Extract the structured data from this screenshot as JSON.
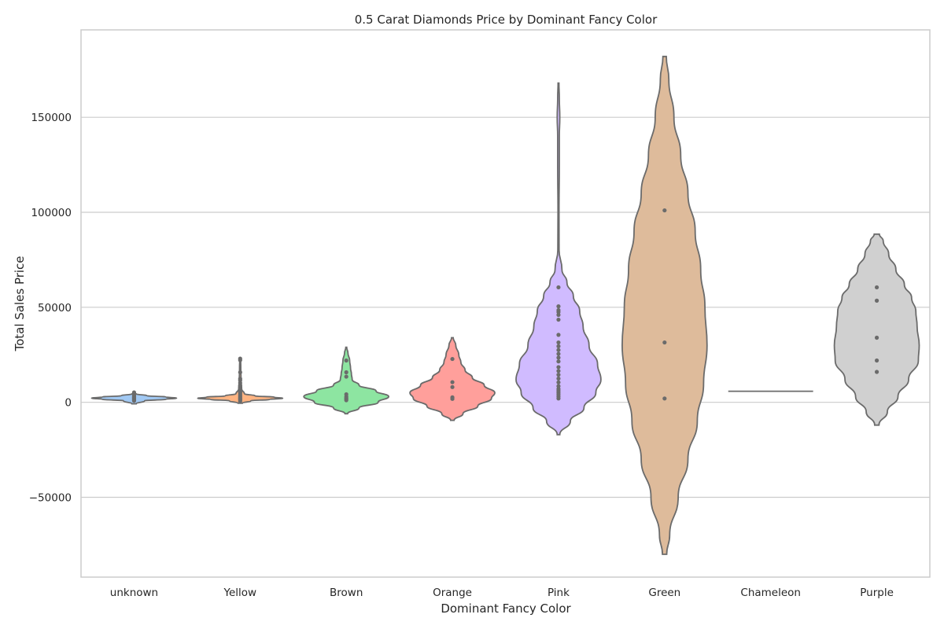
{
  "chart_data": {
    "type": "violin",
    "title": "0.5 Carat Diamonds Price by Dominant Fancy Color",
    "xlabel": "Dominant Fancy Color",
    "ylabel": "Total Sales Price",
    "ylim": [
      -92000,
      196000
    ],
    "yticks": [
      -50000,
      0,
      50000,
      100000,
      150000
    ],
    "ytick_labels": [
      "−50000",
      "0",
      "50000",
      "100000",
      "150000"
    ],
    "grid": true,
    "categories": [
      "unknown",
      "Yellow",
      "Brown",
      "Orange",
      "Pink",
      "Green",
      "Chameleon",
      "Purple"
    ],
    "series": [
      {
        "name": "unknown",
        "color": "#a1c9f4",
        "profile": [
          [
            -800,
            0.05
          ],
          [
            800,
            0.25
          ],
          [
            1600,
            0.75
          ],
          [
            2200,
            1.0
          ],
          [
            2800,
            0.75
          ],
          [
            3500,
            0.3
          ],
          [
            4400,
            0.05
          ]
        ],
        "points": [
          800,
          1200,
          1600,
          2000,
          2200,
          2500,
          2800,
          3200,
          3600,
          4100,
          4600,
          5200
        ]
      },
      {
        "name": "Yellow",
        "color": "#ffb482",
        "profile": [
          [
            -500,
            0.05
          ],
          [
            800,
            0.25
          ],
          [
            1500,
            0.7
          ],
          [
            2100,
            1.0
          ],
          [
            2700,
            0.8
          ],
          [
            3400,
            0.35
          ],
          [
            4500,
            0.1
          ],
          [
            7000,
            0.035
          ],
          [
            12000,
            0.02
          ],
          [
            18000,
            0.015
          ],
          [
            23500,
            0.01
          ]
        ],
        "points": [
          500,
          1100,
          1600,
          2100,
          2600,
          3200,
          3900,
          4600,
          5200,
          5600,
          6000,
          6600,
          7500,
          8800,
          10200,
          11600,
          12400,
          15800,
          22200,
          23000
        ]
      },
      {
        "name": "Brown",
        "color": "#8de5a1",
        "profile": [
          [
            -6000,
            0.03
          ],
          [
            -3000,
            0.3
          ],
          [
            0,
            0.75
          ],
          [
            3000,
            1.0
          ],
          [
            6000,
            0.7
          ],
          [
            9000,
            0.3
          ],
          [
            12000,
            0.14
          ],
          [
            15000,
            0.12
          ],
          [
            18000,
            0.1
          ],
          [
            22000,
            0.08
          ],
          [
            26000,
            0.04
          ],
          [
            29000,
            0.01
          ]
        ],
        "points": [
          1100,
          1700,
          2300,
          3000,
          4200,
          13500,
          15800,
          22000
        ]
      },
      {
        "name": "Orange",
        "color": "#ff9f9b",
        "profile": [
          [
            -9500,
            0.04
          ],
          [
            -6000,
            0.25
          ],
          [
            -2000,
            0.6
          ],
          [
            2000,
            0.92
          ],
          [
            5000,
            1.0
          ],
          [
            9000,
            0.75
          ],
          [
            13000,
            0.47
          ],
          [
            17000,
            0.3
          ],
          [
            21000,
            0.2
          ],
          [
            25000,
            0.15
          ],
          [
            30000,
            0.08
          ],
          [
            34000,
            0.02
          ]
        ],
        "points": [
          1800,
          2600,
          8000,
          10600,
          22800
        ]
      },
      {
        "name": "Pink",
        "color": "#d0bbff",
        "profile": [
          [
            -17000,
            0.03
          ],
          [
            -10000,
            0.28
          ],
          [
            -3000,
            0.6
          ],
          [
            5000,
            0.88
          ],
          [
            12000,
            1.0
          ],
          [
            20000,
            0.92
          ],
          [
            30000,
            0.72
          ],
          [
            40000,
            0.58
          ],
          [
            48000,
            0.5
          ],
          [
            56000,
            0.35
          ],
          [
            63000,
            0.2
          ],
          [
            70000,
            0.08
          ],
          [
            80000,
            0.015
          ],
          [
            100000,
            0.012
          ],
          [
            125000,
            0.02
          ],
          [
            140000,
            0.02
          ],
          [
            150000,
            0.03
          ],
          [
            160000,
            0.02
          ],
          [
            168000,
            0.01
          ]
        ],
        "points": [
          2000,
          3000,
          4000,
          5000,
          6000,
          7000,
          8500,
          10500,
          12500,
          14500,
          16500,
          18500,
          21500,
          23500,
          25500,
          27500,
          29500,
          31500,
          35500,
          43500,
          46000,
          47500,
          48500,
          50500,
          60500
        ]
      },
      {
        "name": "Green",
        "color": "#debb9b",
        "profile": [
          [
            -80000,
            0.05
          ],
          [
            -70000,
            0.12
          ],
          [
            -50000,
            0.32
          ],
          [
            -30000,
            0.55
          ],
          [
            -10000,
            0.77
          ],
          [
            10000,
            0.92
          ],
          [
            30000,
            1.0
          ],
          [
            50000,
            0.95
          ],
          [
            70000,
            0.85
          ],
          [
            90000,
            0.72
          ],
          [
            110000,
            0.55
          ],
          [
            130000,
            0.38
          ],
          [
            150000,
            0.22
          ],
          [
            170000,
            0.1
          ],
          [
            182000,
            0.04
          ]
        ],
        "points": [
          2000,
          31500,
          101000
        ]
      },
      {
        "name": "Chameleon",
        "color": "#cfcfcf",
        "profile": [
          [
            5800,
            1.0
          ]
        ],
        "points": []
      },
      {
        "name": "Purple",
        "color": "#d0d0d0",
        "profile": [
          [
            -12000,
            0.05
          ],
          [
            -5000,
            0.25
          ],
          [
            3000,
            0.5
          ],
          [
            12000,
            0.75
          ],
          [
            22000,
            0.98
          ],
          [
            30000,
            1.0
          ],
          [
            40000,
            0.95
          ],
          [
            48000,
            0.92
          ],
          [
            55000,
            0.82
          ],
          [
            62000,
            0.65
          ],
          [
            70000,
            0.45
          ],
          [
            78000,
            0.28
          ],
          [
            85000,
            0.15
          ],
          [
            88500,
            0.06
          ]
        ],
        "points": [
          16000,
          22000,
          34000,
          53500,
          60500
        ]
      }
    ]
  }
}
